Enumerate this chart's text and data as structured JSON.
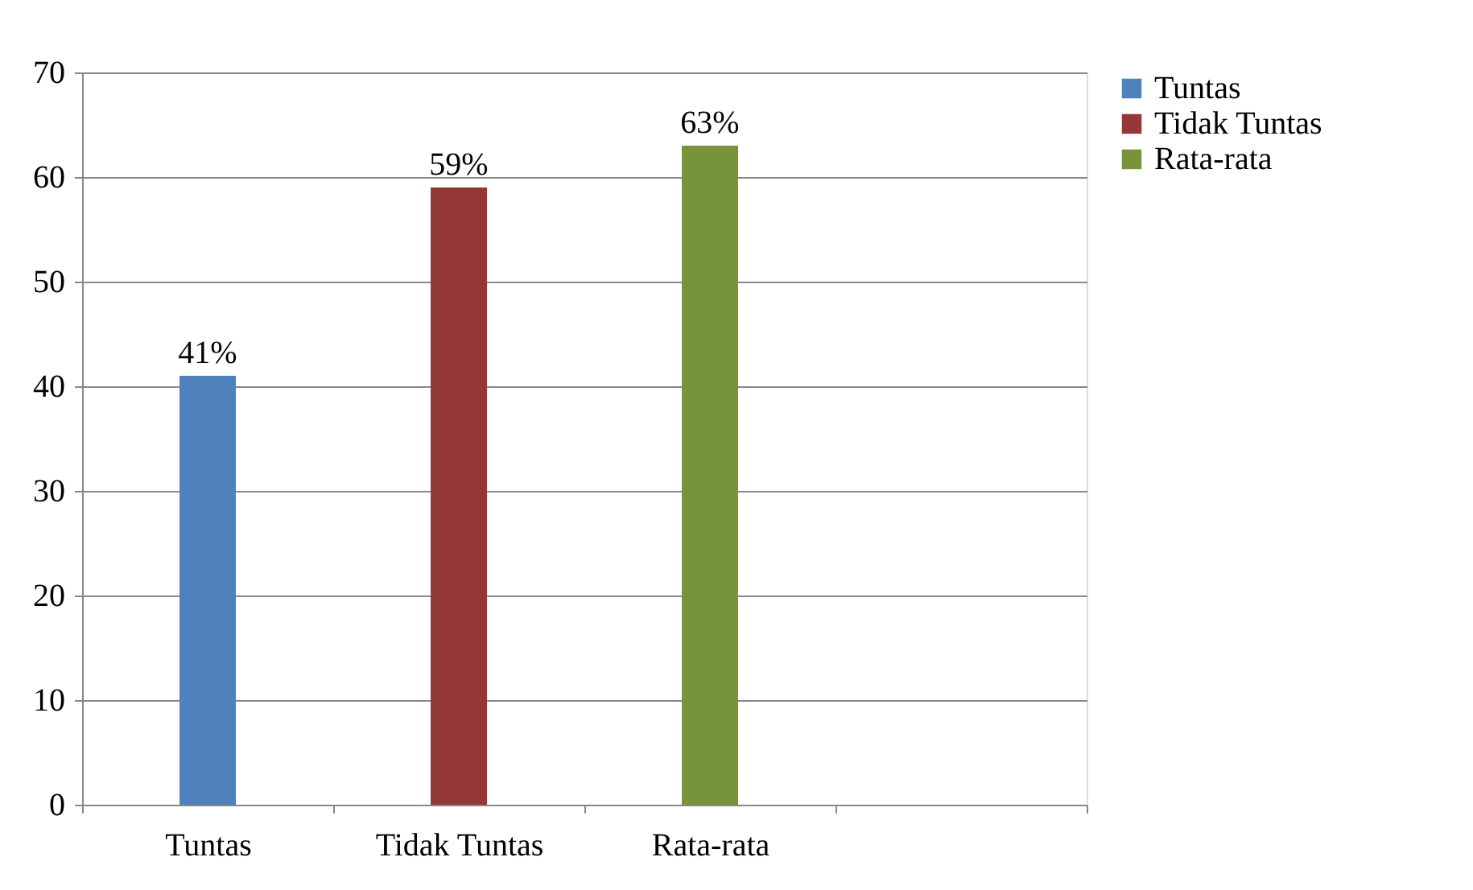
{
  "chart_data": {
    "type": "bar",
    "categories": [
      "Tuntas",
      "Tidak Tuntas",
      "Rata-rata",
      null
    ],
    "series": [
      {
        "name": "Tuntas",
        "color": "#4f81bd",
        "values": [
          41,
          null,
          null,
          null
        ],
        "value_labels": [
          "41%",
          null,
          null,
          null
        ]
      },
      {
        "name": "Tidak Tuntas",
        "color": "#953735",
        "values": [
          null,
          59,
          null,
          null
        ],
        "value_labels": [
          null,
          "59%",
          null,
          null
        ]
      },
      {
        "name": "Rata-rata",
        "color": "#77933c",
        "values": [
          null,
          null,
          63,
          null
        ],
        "value_labels": [
          null,
          null,
          "63%",
          null
        ]
      }
    ],
    "ylim": [
      0,
      70
    ],
    "yticks": [
      0,
      10,
      20,
      30,
      40,
      50,
      60,
      70
    ],
    "grid": "y",
    "legend": "right"
  }
}
